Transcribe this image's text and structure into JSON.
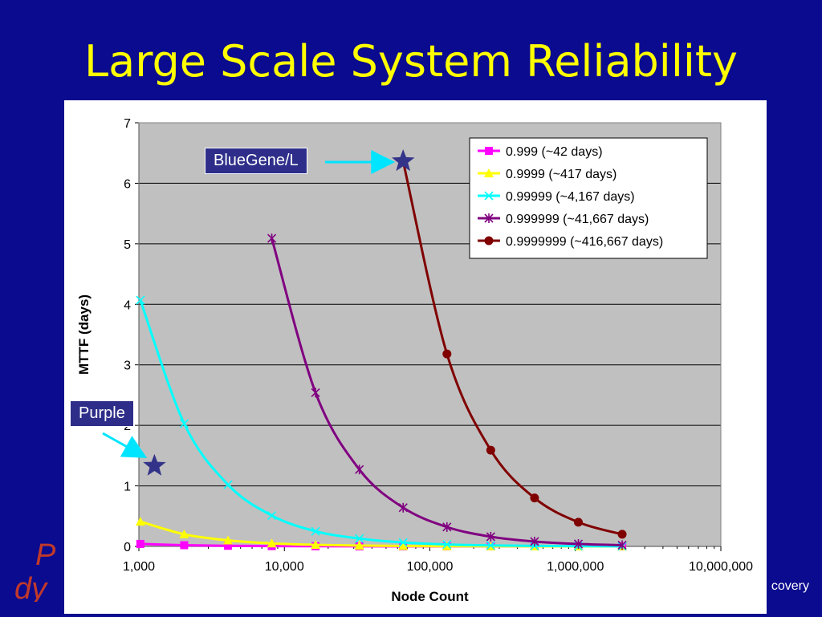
{
  "slide": {
    "title": "Large Scale System Reliability",
    "footer_text": "covery",
    "callouts": {
      "bluegene": "BlueGene/L",
      "purple": "Purple"
    }
  },
  "colors": {
    "background": "#0b0b8f",
    "title": "#ffff00",
    "plot_area": "#c0c0c0",
    "callout_bg": "#2e2e8a",
    "star": "#33338a",
    "arrow": "#00e5ff"
  },
  "chart_data": {
    "type": "line",
    "xlabel": "Node Count",
    "ylabel": "MTTF (days)",
    "x_scale": "log",
    "xlim": [
      1000,
      10000000
    ],
    "ylim": [
      0,
      7
    ],
    "x_ticks": [
      "1,000",
      "10,000",
      "100,000",
      "1,000,000",
      "10,000,000"
    ],
    "y_ticks": [
      "0",
      "1",
      "2",
      "3",
      "4",
      "5",
      "6",
      "7"
    ],
    "grid": true,
    "legend_position": "top-right",
    "series": [
      {
        "name": "0.999 (~42 days)",
        "color": "#ff00ff",
        "marker": "square",
        "x": [
          1024,
          2048,
          4096,
          8192,
          16384,
          32768,
          65536,
          131072,
          262144,
          524288,
          1048576,
          2097152
        ],
        "values": [
          0.041,
          0.02,
          0.01,
          0.005,
          0.0025,
          0.0013,
          0.0006,
          0.0003,
          0.00016,
          8e-05,
          4e-05,
          2e-05
        ]
      },
      {
        "name": "0.9999 (~417 days)",
        "color": "#ffff00",
        "marker": "triangle",
        "x": [
          1024,
          2048,
          4096,
          8192,
          16384,
          32768,
          65536,
          131072,
          262144,
          524288,
          1048576,
          2097152
        ],
        "values": [
          0.41,
          0.2,
          0.1,
          0.05,
          0.025,
          0.013,
          0.006,
          0.003,
          0.0016,
          0.0008,
          0.0004,
          0.0002
        ]
      },
      {
        "name": "0.99999 (~4,167 days)",
        "color": "#00ffff",
        "marker": "x",
        "x": [
          1024,
          2048,
          4096,
          8192,
          16384,
          32768,
          65536,
          131072,
          262144,
          524288,
          1048576,
          2097152
        ],
        "values": [
          4.07,
          2.03,
          1.02,
          0.51,
          0.25,
          0.13,
          0.064,
          0.032,
          0.016,
          0.008,
          0.004,
          0.002
        ]
      },
      {
        "name": "0.999999 (~41,667 days)",
        "color": "#800080",
        "marker": "star",
        "x": [
          8192,
          16384,
          32768,
          65536,
          131072,
          262144,
          524288,
          1048576,
          2097152
        ],
        "values": [
          5.09,
          2.54,
          1.27,
          0.64,
          0.32,
          0.16,
          0.08,
          0.04,
          0.02
        ]
      },
      {
        "name": "0.9999999 (~416,667 days)",
        "color": "#800000",
        "marker": "circle",
        "x": [
          65536,
          131072,
          262144,
          524288,
          1048576,
          2097152
        ],
        "values": [
          6.36,
          3.18,
          1.59,
          0.8,
          0.4,
          0.2
        ]
      }
    ],
    "annotations": [
      {
        "label": "BlueGene/L",
        "x": 65536,
        "y": 6.36,
        "marker": "star"
      },
      {
        "label": "Purple",
        "x": 1280,
        "y": 1.33,
        "marker": "star"
      }
    ]
  }
}
